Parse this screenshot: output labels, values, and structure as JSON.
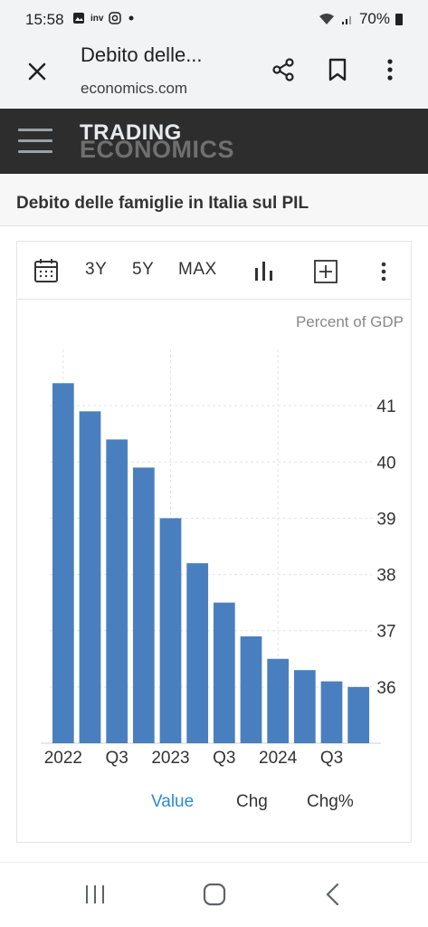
{
  "status_bar": {
    "time": "15:58",
    "battery": "70%",
    "left_icons": [
      "gallery-icon",
      "app-icon",
      "instagram-icon",
      "dot-icon"
    ],
    "right_icons": [
      "wifi-icon",
      "signal-icon",
      "battery-icon"
    ]
  },
  "browser": {
    "page_title": "Debito delle...",
    "url": "economics.com"
  },
  "site": {
    "brand_line1": "TRADING",
    "brand_line2": "ECONOMICS"
  },
  "headline": "Debito delle famiglie in Italia sul PIL",
  "toolbar": {
    "range_3y": "3Y",
    "range_5y": "5Y",
    "range_max": "MAX"
  },
  "chart_tabs": {
    "value": "Value",
    "chg": "Chg",
    "chg_pct": "Chg%"
  },
  "colors": {
    "bar": "#4a7fbf",
    "active_tab": "#2b8ad8",
    "header_bg": "#2d2d2d"
  },
  "chart_data": {
    "type": "bar",
    "unit_label": "Percent of GDP",
    "categories": [
      "2022 Q1",
      "2022 Q2",
      "2022 Q3",
      "2022 Q4",
      "2023 Q1",
      "2023 Q2",
      "2023 Q3",
      "2023 Q4",
      "2024 Q1",
      "2024 Q2",
      "2024 Q3",
      "2024 Q4"
    ],
    "values": [
      41.4,
      40.9,
      40.4,
      39.9,
      39.0,
      38.2,
      37.5,
      36.9,
      36.5,
      36.3,
      36.1,
      36.0
    ],
    "x_tick_labels": [
      "2022",
      "Q3",
      "2023",
      "Q3",
      "2024",
      "Q3"
    ],
    "y_ticks": [
      36,
      37,
      38,
      39,
      40,
      41
    ],
    "ylim": [
      35.0,
      42.0
    ],
    "grid": true,
    "y_axis_side": "right"
  }
}
